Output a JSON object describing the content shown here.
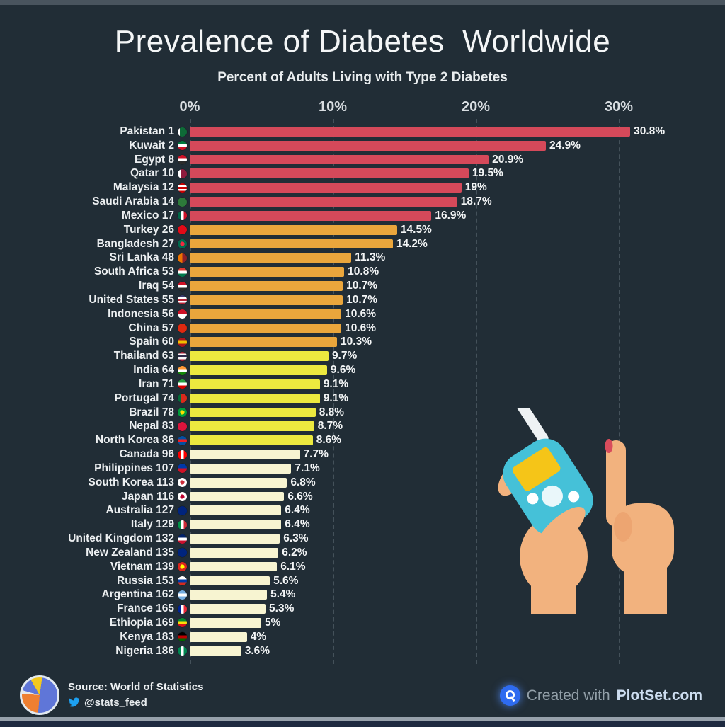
{
  "footer": {
    "source_label": "Source: World of Statistics",
    "twitter_handle": "@stats_feed",
    "credit_prefix": "Created with",
    "credit_brand": "PlotSet.com"
  },
  "colors": {
    "background": "#212d36",
    "bar_red": "#d5495a",
    "bar_orange": "#eaa63c",
    "bar_yellow": "#ece93f",
    "bar_cream": "#f7f4d1",
    "text": "#f3f5f6",
    "grid": "#8ca0ad",
    "twitter_blue": "#1da1f2",
    "plotset_blue": "#2e6bf0",
    "skin": "#f2b27e",
    "meter_teal": "#45c1d8",
    "meter_screen_yellow": "#f5c518",
    "blood_red": "#d94c5c"
  },
  "chart_data": {
    "type": "bar",
    "orientation": "horizontal",
    "title": "Prevalence of Diabetes  Worldwide",
    "subtitle": "Percent of Adults Living with Type 2 Diabetes",
    "unit": "%",
    "grid": "dashed-vertical",
    "legend": "none",
    "x_axis": {
      "ticks": [
        "0%",
        "10%",
        "20%",
        "30%"
      ],
      "tick_values": [
        0,
        10,
        20,
        30
      ],
      "range": [
        0,
        33
      ]
    },
    "bars": [
      {
        "label": "Pakistan",
        "rank": 1,
        "value": 30.8,
        "display": "30.8%",
        "color": "red",
        "flag": {
          "type": "v",
          "colors": [
            "#ffffff",
            "#0e6b37",
            "#0e6b37",
            "#0e6b37"
          ]
        }
      },
      {
        "label": "Kuwait",
        "rank": 2,
        "value": 24.9,
        "display": "24.9%",
        "color": "red",
        "flag": {
          "type": "h",
          "colors": [
            "#007a3d",
            "#ffffff",
            "#ce1126"
          ]
        }
      },
      {
        "label": "Egypt",
        "rank": 8,
        "value": 20.9,
        "display": "20.9%",
        "color": "red",
        "flag": {
          "type": "h",
          "colors": [
            "#ce1126",
            "#ffffff",
            "#2b2b2b"
          ]
        }
      },
      {
        "label": "Qatar",
        "rank": 10,
        "value": 19.5,
        "display": "19.5%",
        "color": "red",
        "flag": {
          "type": "v",
          "colors": [
            "#ffffff",
            "#8d1b3d",
            "#8d1b3d"
          ]
        }
      },
      {
        "label": "Malaysia",
        "rank": 12,
        "value": 19.0,
        "display": "19%",
        "color": "red",
        "flag": {
          "type": "h",
          "colors": [
            "#cc0001",
            "#ffffff",
            "#cc0001",
            "#ffffff",
            "#cc0001"
          ]
        }
      },
      {
        "label": "Saudi Arabia",
        "rank": 14,
        "value": 18.7,
        "display": "18.7%",
        "color": "red",
        "flag": {
          "type": "solid",
          "colors": [
            "#2d7a3a"
          ]
        }
      },
      {
        "label": "Mexico",
        "rank": 17,
        "value": 16.9,
        "display": "16.9%",
        "color": "red",
        "flag": {
          "type": "v",
          "colors": [
            "#006847",
            "#ffffff",
            "#ce1126"
          ]
        }
      },
      {
        "label": "Turkey",
        "rank": 26,
        "value": 14.5,
        "display": "14.5%",
        "color": "orange",
        "flag": {
          "type": "solid",
          "colors": [
            "#e30a17"
          ]
        }
      },
      {
        "label": "Bangladesh",
        "rank": 27,
        "value": 14.2,
        "display": "14.2%",
        "color": "orange",
        "flag": {
          "type": "dot",
          "colors": [
            "#006a4e",
            "#f42a41"
          ]
        }
      },
      {
        "label": "Sri Lanka",
        "rank": 48,
        "value": 11.3,
        "display": "11.3%",
        "color": "orange",
        "flag": {
          "type": "v",
          "colors": [
            "#eb7400",
            "#8d2029"
          ]
        }
      },
      {
        "label": "South Africa",
        "rank": 53,
        "value": 10.8,
        "display": "10.8%",
        "color": "orange",
        "flag": {
          "type": "h",
          "colors": [
            "#de3831",
            "#ffffff",
            "#007a4d"
          ]
        }
      },
      {
        "label": "Iraq",
        "rank": 54,
        "value": 10.7,
        "display": "10.7%",
        "color": "orange",
        "flag": {
          "type": "h",
          "colors": [
            "#ce1126",
            "#ffffff",
            "#2b2b2b"
          ]
        }
      },
      {
        "label": "United States",
        "rank": 55,
        "value": 10.7,
        "display": "10.7%",
        "color": "orange",
        "flag": {
          "type": "h",
          "colors": [
            "#3c3b6e",
            "#ffffff",
            "#b22234",
            "#ffffff",
            "#b22234"
          ]
        }
      },
      {
        "label": "Indonesia",
        "rank": 56,
        "value": 10.6,
        "display": "10.6%",
        "color": "orange",
        "flag": {
          "type": "h",
          "colors": [
            "#ce1126",
            "#ffffff"
          ]
        }
      },
      {
        "label": "China",
        "rank": 57,
        "value": 10.6,
        "display": "10.6%",
        "color": "orange",
        "flag": {
          "type": "solid",
          "colors": [
            "#de2910"
          ]
        }
      },
      {
        "label": "Spain",
        "rank": 60,
        "value": 10.3,
        "display": "10.3%",
        "color": "orange",
        "flag": {
          "type": "h",
          "colors": [
            "#aa151b",
            "#f1bf00",
            "#aa151b"
          ]
        }
      },
      {
        "label": "Thailand",
        "rank": 63,
        "value": 9.7,
        "display": "9.7%",
        "color": "yellow",
        "flag": {
          "type": "h",
          "colors": [
            "#a51931",
            "#f4f5f8",
            "#2d2a4a",
            "#f4f5f8",
            "#a51931"
          ]
        }
      },
      {
        "label": "India",
        "rank": 64,
        "value": 9.6,
        "display": "9.6%",
        "color": "yellow",
        "flag": {
          "type": "h",
          "colors": [
            "#ff9933",
            "#ffffff",
            "#138808"
          ]
        }
      },
      {
        "label": "Iran",
        "rank": 71,
        "value": 9.1,
        "display": "9.1%",
        "color": "yellow",
        "flag": {
          "type": "h",
          "colors": [
            "#239f40",
            "#ffffff",
            "#da0000"
          ]
        }
      },
      {
        "label": "Portugal",
        "rank": 74,
        "value": 9.1,
        "display": "9.1%",
        "color": "yellow",
        "flag": {
          "type": "v",
          "colors": [
            "#046a38",
            "#da291c",
            "#da291c"
          ]
        }
      },
      {
        "label": "Brazil",
        "rank": 78,
        "value": 8.8,
        "display": "8.8%",
        "color": "yellow",
        "flag": {
          "type": "dot",
          "colors": [
            "#009c3b",
            "#ffdf00"
          ]
        }
      },
      {
        "label": "Nepal",
        "rank": 83,
        "value": 8.7,
        "display": "8.7%",
        "color": "yellow",
        "flag": {
          "type": "solid",
          "colors": [
            "#dc143c"
          ]
        }
      },
      {
        "label": "North Korea",
        "rank": 86,
        "value": 8.6,
        "display": "8.6%",
        "color": "yellow",
        "flag": {
          "type": "h",
          "colors": [
            "#024fa2",
            "#ed1c27",
            "#024fa2"
          ]
        }
      },
      {
        "label": "Canada",
        "rank": 96,
        "value": 7.7,
        "display": "7.7%",
        "color": "cream",
        "flag": {
          "type": "v",
          "colors": [
            "#ff0000",
            "#ffffff",
            "#ff0000"
          ]
        }
      },
      {
        "label": "Philippines",
        "rank": 107,
        "value": 7.1,
        "display": "7.1%",
        "color": "cream",
        "flag": {
          "type": "h",
          "colors": [
            "#0038a8",
            "#ce1126"
          ]
        }
      },
      {
        "label": "South Korea",
        "rank": 113,
        "value": 6.8,
        "display": "6.8%",
        "color": "cream",
        "flag": {
          "type": "dot",
          "colors": [
            "#ffffff",
            "#cd2e3a"
          ]
        }
      },
      {
        "label": "Japan",
        "rank": 116,
        "value": 6.6,
        "display": "6.6%",
        "color": "cream",
        "flag": {
          "type": "dot",
          "colors": [
            "#ffffff",
            "#bc002d"
          ]
        }
      },
      {
        "label": "Australia",
        "rank": 127,
        "value": 6.4,
        "display": "6.4%",
        "color": "cream",
        "flag": {
          "type": "solid",
          "colors": [
            "#00247d"
          ]
        }
      },
      {
        "label": "Italy",
        "rank": 129,
        "value": 6.4,
        "display": "6.4%",
        "color": "cream",
        "flag": {
          "type": "v",
          "colors": [
            "#009246",
            "#ffffff",
            "#ce2b37"
          ]
        }
      },
      {
        "label": "United Kingdom",
        "rank": 132,
        "value": 6.3,
        "display": "6.3%",
        "color": "cream",
        "flag": {
          "type": "h",
          "colors": [
            "#012169",
            "#ffffff",
            "#c8102e"
          ]
        }
      },
      {
        "label": "New Zealand",
        "rank": 135,
        "value": 6.2,
        "display": "6.2%",
        "color": "cream",
        "flag": {
          "type": "solid",
          "colors": [
            "#00247d"
          ]
        }
      },
      {
        "label": "Vietnam",
        "rank": 139,
        "value": 6.1,
        "display": "6.1%",
        "color": "cream",
        "flag": {
          "type": "dot",
          "colors": [
            "#da251d",
            "#ffff00"
          ]
        }
      },
      {
        "label": "Russia",
        "rank": 153,
        "value": 5.6,
        "display": "5.6%",
        "color": "cream",
        "flag": {
          "type": "h",
          "colors": [
            "#ffffff",
            "#0039a6",
            "#d52b1e"
          ]
        }
      },
      {
        "label": "Argentina",
        "rank": 162,
        "value": 5.4,
        "display": "5.4%",
        "color": "cream",
        "flag": {
          "type": "h",
          "colors": [
            "#74acdf",
            "#ffffff",
            "#74acdf"
          ]
        }
      },
      {
        "label": "France",
        "rank": 165,
        "value": 5.3,
        "display": "5.3%",
        "color": "cream",
        "flag": {
          "type": "v",
          "colors": [
            "#002395",
            "#ffffff",
            "#ed2939"
          ]
        }
      },
      {
        "label": "Ethiopia",
        "rank": 169,
        "value": 5.0,
        "display": "5%",
        "color": "cream",
        "flag": {
          "type": "h",
          "colors": [
            "#078930",
            "#fcdd09",
            "#da121a"
          ]
        }
      },
      {
        "label": "Kenya",
        "rank": 183,
        "value": 4.0,
        "display": "4%",
        "color": "cream",
        "flag": {
          "type": "h",
          "colors": [
            "#000000",
            "#bb0000",
            "#006600"
          ]
        }
      },
      {
        "label": "Nigeria",
        "rank": 186,
        "value": 3.6,
        "display": "3.6%",
        "color": "cream",
        "flag": {
          "type": "v",
          "colors": [
            "#008751",
            "#ffffff",
            "#008751"
          ]
        }
      }
    ]
  }
}
